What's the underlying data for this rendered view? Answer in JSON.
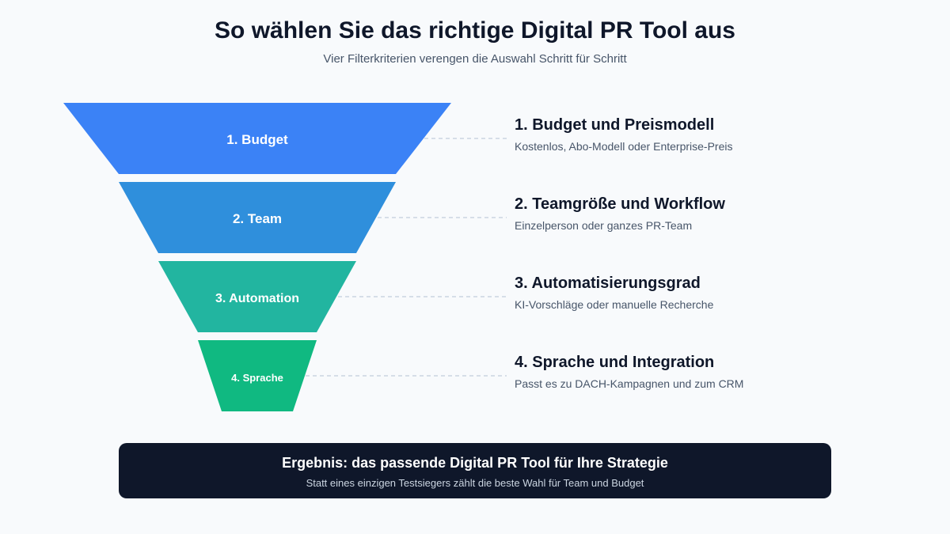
{
  "header": {
    "title": "So wählen Sie das richtige Digital PR Tool aus",
    "subtitle": "Vier Filterkriterien verengen die Auswahl Schritt für Schritt"
  },
  "funnel": [
    {
      "label": "1. Budget",
      "color": "#3b82f6",
      "detail_title": "1. Budget und Preismodell",
      "detail_desc": "Kostenlos, Abo-Modell oder Enterprise-Preis"
    },
    {
      "label": "2. Team",
      "color": "#2f8fdc",
      "detail_title": "2. Teamgröße und Workflow",
      "detail_desc": "Einzelperson oder ganzes PR-Team"
    },
    {
      "label": "3. Automation",
      "color": "#22b5a0",
      "detail_title": "3. Automatisierungsgrad",
      "detail_desc": "KI-Vorschläge oder manuelle Recherche"
    },
    {
      "label": "4. Sprache",
      "color": "#10b981",
      "detail_title": "4. Sprache und Integration",
      "detail_desc": "Passt es zu DACH-Kampagnen und zum CRM"
    }
  ],
  "result": {
    "title": "Ergebnis: das passende Digital PR Tool für Ihre Strategie",
    "subtitle": "Statt eines einzigen Testsiegers zählt die beste Wahl für Team und Budget"
  }
}
